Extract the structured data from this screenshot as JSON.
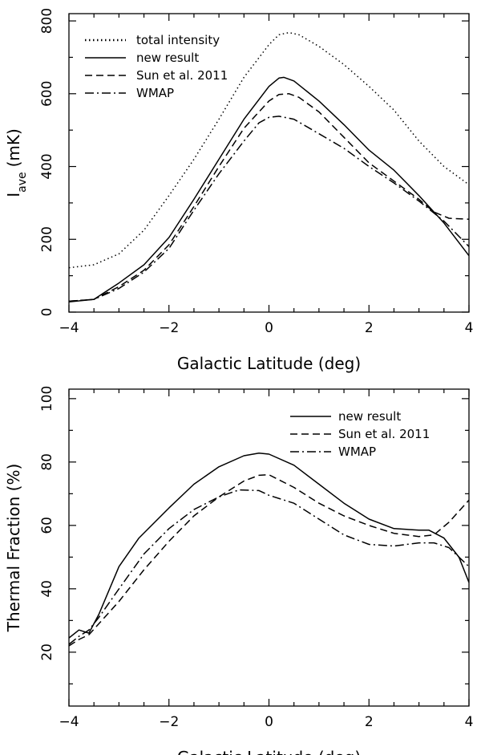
{
  "chart_data": [
    {
      "type": "line",
      "xlabel": "Galactic Latitude (deg)",
      "ylabel": "I",
      "ylabel_sub": "ave",
      "ylabel_unit": "(mK)",
      "xlim": [
        -4,
        4
      ],
      "ylim": [
        0,
        820
      ],
      "xticks": [
        -4,
        -2,
        0,
        2,
        4
      ],
      "yticks": [
        0,
        200,
        400,
        600,
        800
      ],
      "grid": false,
      "legend_position": "top-left",
      "series": [
        {
          "name": "total intensity",
          "style": "dotted",
          "x": [
            -4,
            -3.5,
            -3,
            -2.5,
            -2,
            -1.5,
            -1,
            -0.5,
            0,
            0.2,
            0.4,
            0.6,
            1,
            1.5,
            2,
            2.5,
            3,
            3.5,
            4
          ],
          "y": [
            122,
            130,
            160,
            225,
            320,
            420,
            530,
            645,
            735,
            762,
            768,
            762,
            730,
            680,
            620,
            555,
            470,
            400,
            350
          ]
        },
        {
          "name": "new result",
          "style": "solid",
          "x": [
            -4,
            -3.5,
            -3,
            -2.5,
            -2,
            -1.5,
            -1,
            -0.5,
            0,
            0.2,
            0.3,
            0.5,
            1,
            1.5,
            2,
            2.5,
            3,
            3.5,
            4
          ],
          "y": [
            28,
            35,
            80,
            130,
            205,
            310,
            420,
            530,
            620,
            643,
            645,
            635,
            580,
            515,
            445,
            390,
            320,
            245,
            155
          ]
        },
        {
          "name": "Sun et al. 2011",
          "style": "dashed",
          "x": [
            -4,
            -3.5,
            -3,
            -2.5,
            -2,
            -1.5,
            -1,
            -0.5,
            0,
            0.2,
            0.4,
            0.6,
            1,
            1.5,
            2,
            2.5,
            3,
            3.3,
            3.6,
            4
          ],
          "y": [
            30,
            35,
            70,
            115,
            185,
            290,
            400,
            505,
            580,
            598,
            600,
            590,
            550,
            480,
            410,
            360,
            310,
            275,
            258,
            255
          ]
        },
        {
          "name": "WMAP",
          "style": "dash-dot",
          "x": [
            -4,
            -3.5,
            -3,
            -2.5,
            -2,
            -1.5,
            -1,
            -0.5,
            -0.2,
            0,
            0.2,
            0.5,
            1,
            1.5,
            2,
            2.5,
            3,
            3.5,
            4
          ],
          "y": [
            30,
            35,
            65,
            110,
            175,
            280,
            380,
            470,
            520,
            535,
            538,
            530,
            490,
            450,
            400,
            355,
            305,
            250,
            180
          ]
        }
      ]
    },
    {
      "type": "line",
      "xlabel": "Galactic Latitude (deg)",
      "ylabel": "Thermal Fraction (%)",
      "xlim": [
        -4,
        4
      ],
      "ylim": [
        3,
        103
      ],
      "xticks": [
        -4,
        -2,
        0,
        2,
        4
      ],
      "yticks": [
        20,
        40,
        60,
        80,
        100
      ],
      "grid": false,
      "legend_position": "top-right",
      "series": [
        {
          "name": "new result",
          "style": "solid",
          "x": [
            -4,
            -3.8,
            -3.6,
            -3.4,
            -3,
            -2.6,
            -2,
            -1.5,
            -1,
            -0.5,
            -0.2,
            0,
            0.5,
            1,
            1.5,
            2,
            2.5,
            3,
            3.2,
            3.5,
            3.8,
            4
          ],
          "y": [
            24.5,
            27,
            26,
            32,
            47,
            56,
            65.5,
            73,
            78.5,
            82,
            82.8,
            82.5,
            79,
            73,
            67,
            62,
            59,
            58.5,
            58.5,
            56,
            50,
            42
          ]
        },
        {
          "name": "Sun et al. 2011",
          "style": "dashed",
          "x": [
            -4,
            -3.8,
            -3.6,
            -3.4,
            -3,
            -2.5,
            -2,
            -1.5,
            -1,
            -0.5,
            -0.2,
            0,
            0.5,
            1,
            1.5,
            2,
            2.5,
            3,
            3.3,
            3.6,
            4
          ],
          "y": [
            22,
            24,
            25.5,
            29,
            36,
            46,
            55,
            63,
            69,
            74,
            75.8,
            76,
            72,
            67,
            63,
            60,
            57.5,
            56.5,
            57,
            61,
            68
          ]
        },
        {
          "name": "WMAP",
          "style": "dash-dot",
          "x": [
            -4,
            -3.8,
            -3.6,
            -3.4,
            -3,
            -2.5,
            -2,
            -1.5,
            -1,
            -0.6,
            -0.2,
            0,
            0.5,
            1,
            1.5,
            2,
            2.5,
            3,
            3.3,
            3.6,
            4
          ],
          "y": [
            22.5,
            25,
            27,
            31,
            40,
            51,
            59,
            65,
            69,
            71.2,
            71,
            69.5,
            67,
            62,
            57,
            54,
            53.5,
            54.5,
            54.5,
            53,
            47
          ]
        }
      ]
    }
  ]
}
